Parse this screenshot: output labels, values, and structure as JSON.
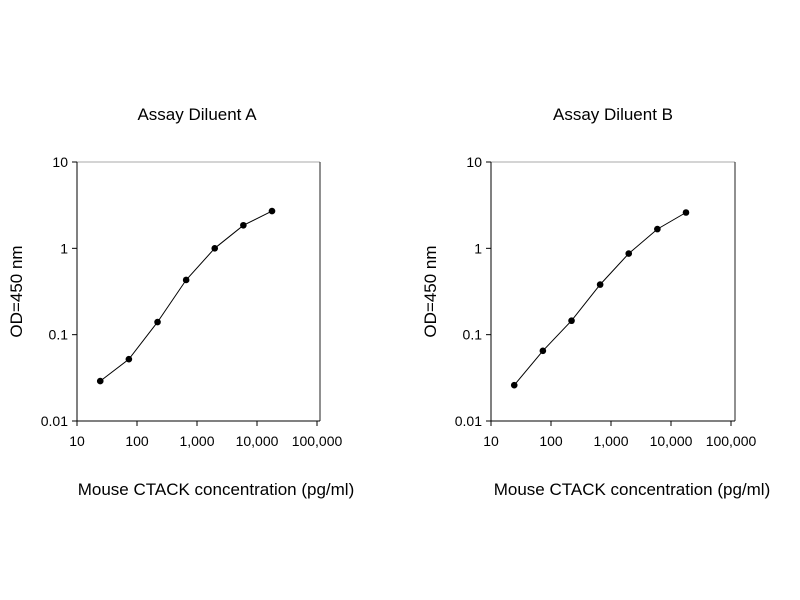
{
  "chart_data": [
    {
      "type": "line",
      "title": "Assay Diluent A",
      "xlabel": "Mouse CTACK concentration (pg/ml)",
      "ylabel": "OD=450 nm",
      "xscale": "log",
      "yscale": "log",
      "xlim": [
        10,
        100000
      ],
      "ylim": [
        0.01,
        10
      ],
      "xticks": [
        "10",
        "100",
        "1,000",
        "10,000",
        "100,000"
      ],
      "yticks": [
        "0.01",
        "0.1",
        "1",
        "10"
      ],
      "grid": false,
      "series": [
        {
          "name": "Assay Diluent A",
          "x": [
            24.4,
            73.2,
            220,
            659,
            1975,
            5926,
            17778
          ],
          "y": [
            0.029,
            0.052,
            0.14,
            0.43,
            1.0,
            1.85,
            2.7
          ]
        }
      ]
    },
    {
      "type": "line",
      "title": "Assay Diluent B",
      "xlabel": "Mouse CTACK concentration (pg/ml)",
      "ylabel": "OD=450 nm",
      "xscale": "log",
      "yscale": "log",
      "xlim": [
        10,
        100000
      ],
      "ylim": [
        0.01,
        10
      ],
      "xticks": [
        "10",
        "100",
        "1,000",
        "10,000",
        "100,000"
      ],
      "yticks": [
        "0.01",
        "0.1",
        "1",
        "10"
      ],
      "grid": false,
      "series": [
        {
          "name": "Assay Diluent B",
          "x": [
            24.4,
            73.2,
            220,
            659,
            1975,
            5926,
            17778
          ],
          "y": [
            0.026,
            0.065,
            0.145,
            0.38,
            0.87,
            1.67,
            2.6
          ]
        }
      ]
    }
  ]
}
